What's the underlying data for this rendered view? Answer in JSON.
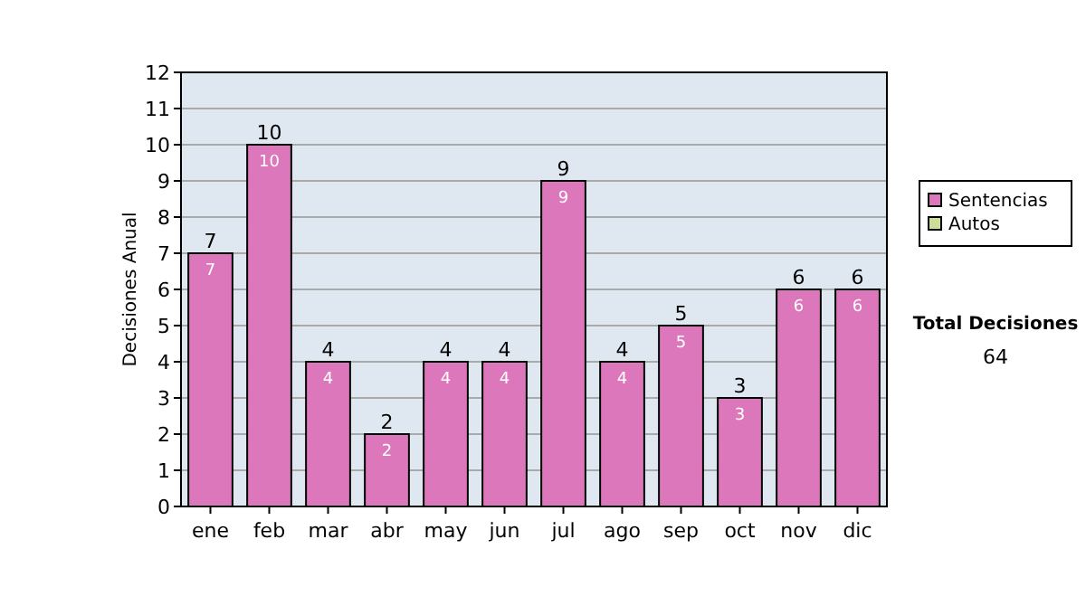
{
  "chart_data": {
    "type": "bar",
    "stacked": true,
    "ylabel": "Decisiones Anual",
    "categories": [
      "ene",
      "feb",
      "mar",
      "abr",
      "may",
      "jun",
      "jul",
      "ago",
      "sep",
      "oct",
      "nov",
      "dic"
    ],
    "series": [
      {
        "name": "Sentencias",
        "color": "#dd77bb",
        "values": [
          7,
          10,
          4,
          2,
          4,
          4,
          9,
          4,
          5,
          3,
          6,
          6
        ],
        "value_labels": [
          "7",
          "10",
          "4",
          "2",
          "4",
          "4",
          "9",
          "4",
          "5",
          "3",
          "6",
          "6"
        ]
      },
      {
        "name": "Autos",
        "color": "#ccdd99",
        "values": [
          0,
          0,
          0,
          0,
          0,
          0,
          0,
          0,
          0,
          0,
          0,
          0
        ]
      }
    ],
    "totals": [
      "7",
      "10",
      "4",
      "2",
      "4",
      "4",
      "9",
      "4",
      "5",
      "3",
      "6",
      "6"
    ],
    "ylim": [
      0,
      12
    ],
    "yticks": [
      0,
      1,
      2,
      3,
      4,
      5,
      6,
      7,
      8,
      9,
      10,
      11,
      12
    ],
    "grid": "y",
    "legend": "right",
    "annotations": [
      "Total Decisiones",
      "64"
    ]
  }
}
